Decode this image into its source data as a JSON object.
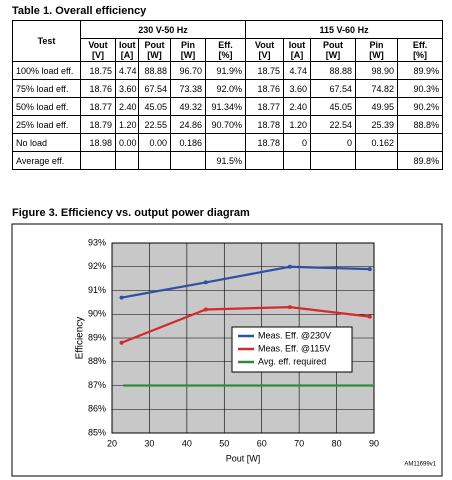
{
  "table": {
    "title": "Table 1.    Overall efficiency",
    "header": {
      "test": "Test",
      "groups": [
        "230 V-50 Hz",
        "115 V-60 Hz"
      ],
      "columns": [
        {
          "name": "Vout",
          "unit": "[V]"
        },
        {
          "name": "Iout",
          "unit": "[A]"
        },
        {
          "name": "Pout",
          "unit": "[W]"
        },
        {
          "name": "Pin",
          "unit": "[W]"
        },
        {
          "name": "Eff.",
          "unit": "[%]"
        }
      ]
    },
    "rows": [
      [
        "100% load eff.",
        "18.75",
        "4.74",
        "88.88",
        "96.70",
        "91.9%",
        "18.75",
        "4.74",
        "88.88",
        "98.90",
        "89.9%"
      ],
      [
        "75% load eff.",
        "18.76",
        "3.60",
        "67.54",
        "73.38",
        "92.0%",
        "18.76",
        "3.60",
        "67.54",
        "74.82",
        "90.3%"
      ],
      [
        "50% load eff.",
        "18.77",
        "2.40",
        "45.05",
        "49.32",
        "91.34%",
        "18.77",
        "2.40",
        "45.05",
        "49.95",
        "90.2%"
      ],
      [
        "25% load eff.",
        "18.79",
        "1.20",
        "22.55",
        "24.86",
        "90.70%",
        "18.78",
        "1.20",
        "22.54",
        "25.39",
        "88.8%"
      ],
      [
        "No load",
        "18.98",
        "0.00",
        "0.00",
        "0.186",
        null,
        "18.78",
        "0",
        "0",
        "0.162",
        null
      ],
      [
        "Average eff.",
        null,
        null,
        null,
        null,
        "91.5%",
        null,
        null,
        null,
        null,
        "89.8%"
      ]
    ]
  },
  "chart_data": {
    "type": "line",
    "title": "Figure 3.    Efficiency vs. output power diagram",
    "x_label": "Pout [W]",
    "y_label": "Efficiency",
    "note": "AM11699v1",
    "xlim": [
      20,
      90
    ],
    "xticks": [
      20,
      30,
      40,
      50,
      60,
      70,
      80,
      90
    ],
    "ylim": [
      85,
      93
    ],
    "yticks": [
      {
        "value": 85,
        "label": "85%"
      },
      {
        "value": 86,
        "label": "86%"
      },
      {
        "value": 87,
        "label": "87%"
      },
      {
        "value": 88,
        "label": "88%"
      },
      {
        "value": 89,
        "label": "89%"
      },
      {
        "value": 90,
        "label": "90%"
      },
      {
        "value": 91,
        "label": "91%"
      },
      {
        "value": 92,
        "label": "92%"
      },
      {
        "value": 93,
        "label": "93%"
      }
    ],
    "grid": true,
    "series": [
      {
        "name": "Meas. Eff. @230V",
        "color": "#2e4fa3",
        "x": [
          22.55,
          45.05,
          67.54,
          88.88
        ],
        "values": [
          90.7,
          91.34,
          92.0,
          91.9
        ]
      },
      {
        "name": "Meas. Eff. @115V",
        "color": "#d42a2a",
        "x": [
          22.54,
          45.05,
          67.54,
          88.88
        ],
        "values": [
          88.8,
          90.2,
          90.3,
          89.9
        ]
      },
      {
        "name": "Avg. eff. required",
        "color": "#2e8b3a",
        "x": [
          23,
          90
        ],
        "values": [
          87,
          87
        ]
      }
    ]
  }
}
